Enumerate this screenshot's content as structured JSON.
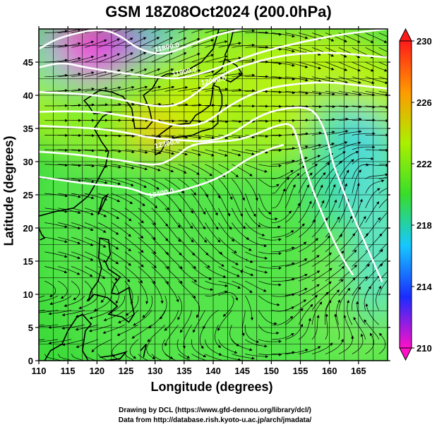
{
  "chart_data": {
    "type": "heatmap",
    "title": "GSM 18Z08Oct2024 (200.0hPa)",
    "xlabel": "Longitude (degrees)",
    "ylabel": "Latitude  (degrees)",
    "xlim": [
      110,
      170
    ],
    "ylim": [
      0,
      50
    ],
    "x_ticks": [
      "110",
      "115",
      "120",
      "125",
      "130",
      "135",
      "140",
      "145",
      "150",
      "155",
      "160",
      "165"
    ],
    "y_ticks": [
      "0",
      "5",
      "10",
      "15",
      "20",
      "25",
      "30",
      "35",
      "40",
      "45"
    ],
    "colorbar": {
      "range": [
        210,
        230
      ],
      "ticks": [
        "210",
        "214",
        "218",
        "222",
        "226",
        "230"
      ],
      "colors": [
        "#ff10c8",
        "#1a2cff",
        "#16c8ff",
        "#38dd2a",
        "#aaf000",
        "#ff9a00",
        "#ff1a1a"
      ]
    },
    "contour_labels": [
      {
        "text": "11800.0",
        "lon": 130,
        "lat": 46.5
      },
      {
        "text": "11900.0",
        "lon": 133,
        "lat": 42.8
      },
      {
        "text": "12000.0",
        "lon": 138,
        "lat": 41.5
      },
      {
        "text": "12300.0",
        "lon": 130,
        "lat": 32
      },
      {
        "text": "12400.0",
        "lon": 129,
        "lat": 24.5
      }
    ],
    "contour_lines": [
      {
        "value": "11800.0",
        "points": [
          [
            110,
            47
          ],
          [
            113,
            48.5
          ],
          [
            117,
            49.5
          ],
          [
            121,
            50
          ],
          [
            124,
            49
          ],
          [
            127,
            47
          ],
          [
            131,
            46
          ],
          [
            135,
            47.2
          ],
          [
            140,
            49
          ],
          [
            145,
            50
          ]
        ]
      },
      {
        "value": "11900.0",
        "points": [
          [
            110,
            44.2
          ],
          [
            114,
            45
          ],
          [
            118,
            44.2
          ],
          [
            123,
            43.5
          ],
          [
            128,
            43
          ],
          [
            133,
            42.4
          ],
          [
            137,
            43
          ],
          [
            142,
            44.5
          ],
          [
            148,
            46.5
          ],
          [
            155,
            48
          ],
          [
            162,
            49.2
          ],
          [
            170,
            50
          ]
        ]
      },
      {
        "value": "12000.0",
        "points": [
          [
            110,
            40.5
          ],
          [
            115,
            40.3
          ],
          [
            120,
            40
          ],
          [
            124,
            39.4
          ],
          [
            128,
            38.6
          ],
          [
            132,
            38.2
          ],
          [
            135,
            39
          ],
          [
            138,
            41
          ],
          [
            142,
            43.4
          ],
          [
            147,
            45
          ],
          [
            153,
            46.2
          ],
          [
            160,
            46.5
          ],
          [
            166,
            46
          ],
          [
            170,
            45.7
          ]
        ]
      },
      {
        "value": "12100.0",
        "points": [
          [
            110,
            37.5
          ],
          [
            115,
            37.6
          ],
          [
            120,
            37.5
          ],
          [
            124,
            37
          ],
          [
            127,
            36.6
          ],
          [
            130,
            36.2
          ],
          [
            133,
            35.5
          ],
          [
            136,
            35.3
          ],
          [
            139,
            36
          ],
          [
            142,
            38
          ],
          [
            146,
            40
          ],
          [
            150,
            41.2
          ],
          [
            155,
            41.8
          ],
          [
            160,
            42
          ],
          [
            165,
            41.5
          ],
          [
            170,
            41
          ]
        ]
      },
      {
        "value": "12200.0",
        "points": [
          [
            110,
            35.4
          ],
          [
            115,
            35.2
          ],
          [
            120,
            35
          ],
          [
            125,
            34.4
          ],
          [
            129,
            33.6
          ],
          [
            132,
            33.4
          ],
          [
            135,
            33.2
          ],
          [
            139,
            33
          ],
          [
            143,
            34
          ],
          [
            148,
            37
          ],
          [
            152,
            38
          ],
          [
            156,
            38.3
          ],
          [
            158,
            37
          ],
          [
            159.5,
            34
          ],
          [
            160.5,
            30
          ],
          [
            161.8,
            27
          ],
          [
            163.5,
            23
          ],
          [
            165.5,
            19
          ],
          [
            167.5,
            15
          ],
          [
            169,
            12
          ]
        ]
      },
      {
        "value": "12300.0",
        "points": [
          [
            110,
            31.5
          ],
          [
            115,
            31.2
          ],
          [
            120,
            30.7
          ],
          [
            124,
            30.2
          ],
          [
            128,
            29.6
          ],
          [
            131,
            29.5
          ],
          [
            134,
            31
          ],
          [
            136,
            32.5
          ],
          [
            140,
            33
          ],
          [
            144,
            33.2
          ],
          [
            147,
            34
          ],
          [
            151,
            35.5
          ],
          [
            153.5,
            35.8
          ],
          [
            154.5,
            33.5
          ],
          [
            155.5,
            30
          ],
          [
            157,
            26
          ],
          [
            158.8,
            22
          ],
          [
            160.6,
            18.3
          ],
          [
            162.5,
            15
          ],
          [
            164,
            13
          ]
        ]
      },
      {
        "value": "12400.0",
        "points": [
          [
            110,
            27.7
          ],
          [
            114,
            27.2
          ],
          [
            118,
            26.7
          ],
          [
            122,
            26.4
          ],
          [
            126,
            26
          ],
          [
            129,
            24.8
          ],
          [
            133,
            25.3
          ],
          [
            138,
            26.5
          ],
          [
            142,
            28
          ],
          [
            146,
            30.5
          ],
          [
            150,
            32
          ],
          [
            152,
            32.5
          ]
        ]
      }
    ]
  }
}
